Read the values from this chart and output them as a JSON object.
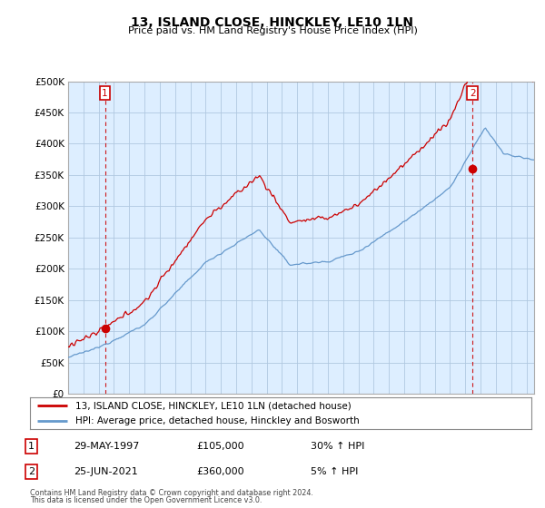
{
  "title": "13, ISLAND CLOSE, HINCKLEY, LE10 1LN",
  "subtitle": "Price paid vs. HM Land Registry's House Price Index (HPI)",
  "legend_line1": "13, ISLAND CLOSE, HINCKLEY, LE10 1LN (detached house)",
  "legend_line2": "HPI: Average price, detached house, Hinckley and Bosworth",
  "table_row1_num": "1",
  "table_row1_date": "29-MAY-1997",
  "table_row1_price": "£105,000",
  "table_row1_hpi": "30% ↑ HPI",
  "table_row2_num": "2",
  "table_row2_date": "25-JUN-2021",
  "table_row2_price": "£360,000",
  "table_row2_hpi": "5% ↑ HPI",
  "footnote1": "Contains HM Land Registry data © Crown copyright and database right 2024.",
  "footnote2": "This data is licensed under the Open Government Licence v3.0.",
  "xmin": 1995.0,
  "xmax": 2025.5,
  "ymin": 0,
  "ymax": 500000,
  "yticks": [
    0,
    50000,
    100000,
    150000,
    200000,
    250000,
    300000,
    350000,
    400000,
    450000,
    500000
  ],
  "sale1_x": 1997.41,
  "sale1_y": 105000,
  "sale2_x": 2021.48,
  "sale2_y": 360000,
  "red_color": "#cc0000",
  "blue_color": "#6699cc",
  "chart_bg": "#ddeeff",
  "bg_color": "#ffffff",
  "grid_color": "#b0c8e0",
  "marker1_label": "1",
  "marker2_label": "2"
}
